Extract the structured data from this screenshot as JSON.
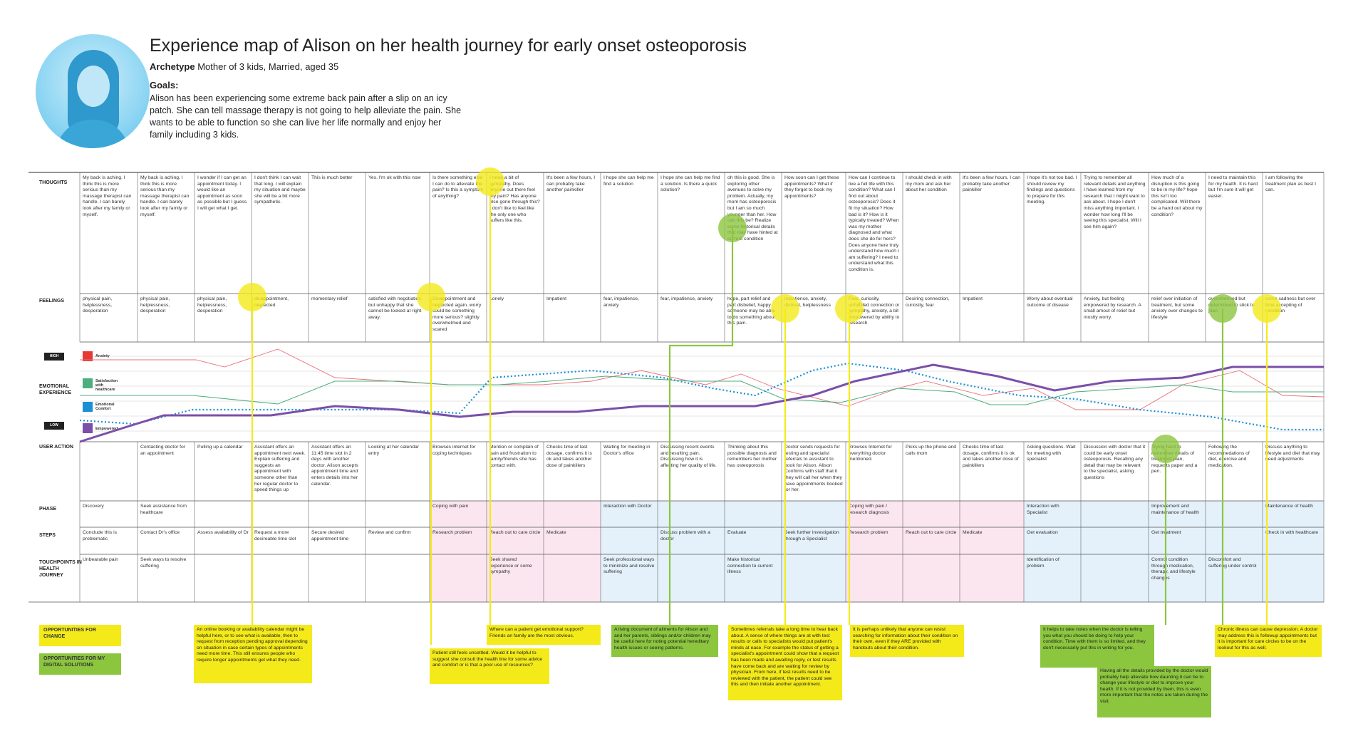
{
  "header": {
    "title": "Experience map of Alison on her health journey for early onset osteoporosis",
    "archetype_label": "Archetype",
    "archetype_value": " Mother of 3 kids, Married, aged 35",
    "goals_label": "Goals:",
    "goals_text": "Alison has been experiencing some extreme back pain after a slip on an icy patch. She can tell massage therapy is not going to help alleviate the pain. She wants to be able to function so she can live her life normally and enjoy her family including 3 kids."
  },
  "rows": {
    "thoughts": "THOUGHTS",
    "feelings": "FEELINGS",
    "emotional": "EMOTIONAL EXPERIENCE",
    "user_action": "USER ACTION",
    "phase": "PHASE",
    "steps": "STEPS",
    "touchpoints": "TOUCHPOINTS IN HEALTH JOURNEY"
  },
  "legend": {
    "high": "HIGH",
    "low": "LOW",
    "anxiety": "Anxiety",
    "satisfaction": "Satisfaction with healthcare",
    "comfort": "Emotional Comfort",
    "empowered": "Empowered",
    "colors": {
      "anxiety": "#e53935",
      "satisfaction": "#4caf7d",
      "comfort": "#1a8fd6",
      "empowered": "#7b4fa8"
    }
  },
  "thoughts": [
    "My back is aching. I think this is more serious than my massage therapist can handle. I can barely look after my family or myself.",
    "My back is aching. I think this is more serious than my massage therapist can handle. I can barely look after my family or myself.",
    "I wonder if I can get an appointment today. I would like an appointment as soon as possible but I guess I will get what I get.",
    "I don't think I can wait that long. I will explain my situation and maybe she will be a bit more sympathetic.",
    "This is much better",
    "Yes. I'm ok with this now",
    "Is there something else I can do to alleviate the pain? Is this a symptom of anything?",
    "I need a bit of sympathy. Does anyone out there feel my pain? Has anyone else gone through this? I don't like to feel like the only one who suffers like this.",
    "It's been a few hours, I can probably take another painkiller",
    "I hope she can help me find a solution",
    "I hope she can help me find a solution. Is there a quick solution?",
    "oh this is good. She is exploring other avenues to solve my problem. Actually, my mom has osteoporosis but I am so much younger than her. How can this be? Realize some historical details that may have hinted at current condition",
    "How soon can I get these appointments? What if they forget to book my appointments?",
    "How can I continue to live a full life with this condition? What can I find out about osteoporosis? Does it fit my situation? How bad is it? How is it typically treated? When was my mother diagnosed and what does she do for hers? Does anyone here truly understand how much I am suffering? I need to understand what this condition is.",
    "I should check in with my mom and ask her about her condition",
    "It's been a few hours, I can probably take another painkiller",
    "I hope it's not too bad. I should review my findings and questions to prepare for this meeting.",
    "Trying to remember all relevant details and anything I have learned from my research that I might want to ask about. I hope I don't miss anything important. I wonder how long I'll be seeing this specialist. Will I see him again?",
    "How much of a disruption is this going to be in my life? hope this isn't too complicated. Will there be a hand out about my condition?",
    "I need to maintain this for my health. It is hard but I'm sure it will get easier.",
    "I am following the treatment plan as best I can."
  ],
  "feelings": [
    "physical pain, helplessness, desperation",
    "physical pain, helplessness, desperation",
    "physical pain, helplessness, desperation",
    "disappointment, neglected",
    "momentary relief",
    "satisfied with negotiation, but unhappy that she cannot be looked at right away.",
    "Disappointment and neglected again. worry could be something more serious? slightly overwhelmed and scared",
    "Lonely",
    "Impatient",
    "fear, impatience, anxiety",
    "fear, impatience, anxiety",
    "hope, part relief and part disbelief, happy someone may be able to do something about this pain.",
    "impatience, anxiety, distrust, helplessness",
    "Fear, curiosity, unfulfilled connection or sympathy, anxiety, a bit empowered by ability to research",
    "Desiring connection, curiosity, fear",
    "Impatient",
    "Worry about eventual outcome of disease",
    "Anxiety, but feeling empowered by research. A small amout of relief but mostly worry.",
    "relief over initiation of treatment, but some anxiety over changes to lifestyle",
    "overwhelmed but determined to stick to plan.",
    "some sadness but over time accepting of condition"
  ],
  "actions": [
    "",
    "Contacting doctor for an appointment",
    "Pulling up a calendar",
    "Assistant offers an appointment next week. Explain suffering and suggests an appointment with someone other than her regular doctor to speed things up",
    "Assistant offers an 11:45 time slot in 2 days with another doctor. Alison accepts appointment time and enters details into her calendar.",
    "Looking at her calendar entry",
    "Browses internet for coping techniques",
    "Mention or complain of pain and frustration to family/friends she has contact with.",
    "Checks time of last dosage, confirms it is ok and takes another dose of painkillers",
    "Waiting for meeting in Doctor's office",
    "Discussing recent events and resulting pain. Discussing how it is affecting her quality of life.",
    "Thinking about this possible diagnosis and remembers her mother has osteoporosis",
    "Doctor sends requests for testing and specialist referrals to assistant to book for Alison. Alison Confirms with staff that it they will call her when they have appointments booked for her.",
    "Browses Internet for everything doctor mentioned.",
    "Picks up the phone and calls mom",
    "Checks time of last dosage, confirms it is ok and takes another dose of painkillers",
    "Asking questions. Wait for meeting with specialist",
    "Discussion with doctor that it could be early onset osteoporosis. Recalling any detail that may be relevant to the specialist, asking questions",
    "Trying hard to remember details of treatment plan, requests paper and a pen.",
    "Following the recommedations of diet, exercise and medication.",
    "Discuss anything to lifestyle and diet that may need adjustments"
  ],
  "phases": [
    {
      "col": 0,
      "text": "Discovery"
    },
    {
      "col": 1,
      "text": "Seek assistance from healthcare"
    },
    {
      "col": 6,
      "text": "Coping with pain"
    },
    {
      "col": 9,
      "text": "Interaction with Doctor"
    },
    {
      "col": 13,
      "text": "Coping with pain / research diagnosis"
    },
    {
      "col": 16,
      "text": "Interaction with Specialist"
    },
    {
      "col": 18,
      "text": "Improvement and maintenance of health"
    },
    {
      "col": 20,
      "text": "Maintenance of health"
    }
  ],
  "steps": [
    {
      "col": 0,
      "text": "Conclude this is problematic"
    },
    {
      "col": 1,
      "text": "Contact Dr's office"
    },
    {
      "col": 2,
      "text": "Assess availability of Dr"
    },
    {
      "col": 3,
      "text": "Request a more desireable time slot"
    },
    {
      "col": 4,
      "text": "Secure desired appointment time"
    },
    {
      "col": 5,
      "text": "Review and confirm"
    },
    {
      "col": 6,
      "text": "Research problem"
    },
    {
      "col": 7,
      "text": "Reach out to care circle"
    },
    {
      "col": 8,
      "text": "Medicate"
    },
    {
      "col": 10,
      "text": "Discuss problem with a doctor"
    },
    {
      "col": 11,
      "text": "Evaluate"
    },
    {
      "col": 12,
      "text": "Seek further investigation through a Specialist"
    },
    {
      "col": 13,
      "text": "Research problem"
    },
    {
      "col": 14,
      "text": "Reach out to care circle"
    },
    {
      "col": 15,
      "text": "Medicate"
    },
    {
      "col": 16,
      "text": "Get evaluation"
    },
    {
      "col": 18,
      "text": "Get treatment"
    },
    {
      "col": 20,
      "text": "Check in with healthcare"
    }
  ],
  "touchpoints": [
    {
      "col": 0,
      "text": "Unbearable pain"
    },
    {
      "col": 1,
      "text": "Seek ways to resolve suffering"
    },
    {
      "col": 7,
      "text": "Seek shared experience or some sympathy"
    },
    {
      "col": 9,
      "text": "Seek professional ways to minimize and resolve suffering"
    },
    {
      "col": 11,
      "text": "Make historical connection to current illness"
    },
    {
      "col": 16,
      "text": "Identification of problem"
    },
    {
      "col": 18,
      "text": "Control condition through medication, therapy, and lifestyle changes"
    },
    {
      "col": 19,
      "text": "Discomfort and suffering under control"
    }
  ],
  "buttons": {
    "change": "OPPORTUNITIES FOR CHANGE",
    "digital": "OPPORTUNITIES FOR MY DIGITAL SOLUTIONS"
  },
  "notes": [
    {
      "color": "yellow",
      "text": "An online booking or availability calendar might be helpful here, or to see what is available, then to request from reception pending approval depending on situation in case certain types of appointments need more time. This still ensures people who require longer appointments get what they need."
    },
    {
      "color": "yellow",
      "text": "Patient still feels unsettled. Would it be helpful to suggest she consult the health line for some advice and comfort or is that a poor use of resources?"
    },
    {
      "color": "yellow",
      "text": "Where can a patient get emotional support? Friends an family are the most obvious."
    },
    {
      "color": "green",
      "text": "A living document of ailments for Alison and and her parents, siblings and/or children may be useful here for noting potential hereditary health issues or seeing patterns."
    },
    {
      "color": "yellow",
      "text": "Sometimes referrals take a long time to hear back about. A sense of where things are at with test results or calls to specialists would put patient's minds at ease. For example the status of getting a specialist's appointment could show that a request has been made and awaiting reply, or test results have come back and are waiting for review by physician. From here, if test results need to be reviewed with the patient, the patient could see this and then initiate another appointment."
    },
    {
      "color": "yellow",
      "text": "It is perhaps unlikely that anyone can resist searching for information about their condition on their own, even if they ARE provided with handouts about their condition."
    },
    {
      "color": "green",
      "text": "It helps to take notes when the doctor is telling you what you should be doing to help your condition. Time with them is so limited, and they don't necessarily put this in writing for you."
    },
    {
      "color": "green",
      "text": "Having all the details provided by the doctor would probably help alleviate how daunting it can be to change your lifestyle or diet to improve your health. If it is not provided by them, this is even more important that the notes are taken during the visit."
    },
    {
      "color": "yellow",
      "text": "Chronic illness can cause depression. A doctor may address this is followup appointments but it is important for care circles to be on the lookout for this as well."
    }
  ]
}
